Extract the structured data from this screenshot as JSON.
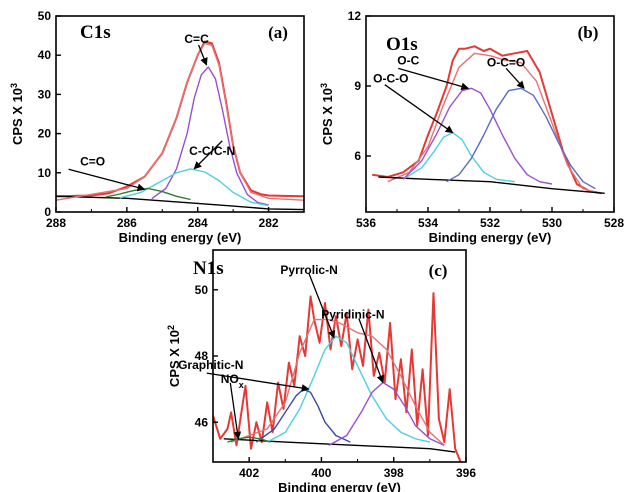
{
  "figure": {
    "background": "#ffffff"
  },
  "chart_data": [
    {
      "type": "line",
      "title": "C1s",
      "panel_label": "(a)",
      "xlabel": "Binding energy (eV)",
      "ylabel": "CPS X 10",
      "ylabel_exp": "3",
      "xlim": [
        288,
        281
      ],
      "ylim": [
        0,
        50
      ],
      "xticks": [
        288,
        286,
        284,
        282
      ],
      "yticks": [
        0,
        10,
        20,
        30,
        40,
        50
      ],
      "series": [
        {
          "color": "#e53935",
          "x": [
            288,
            287,
            286.5,
            286,
            285.5,
            285,
            284.6,
            284.3,
            284,
            283.8,
            283.6,
            283.4,
            283.2,
            283,
            282.8,
            282.5,
            282.2,
            282,
            281.6,
            281
          ],
          "y": [
            4,
            4.2,
            4.8,
            6.5,
            9,
            15,
            24,
            33,
            40,
            43.5,
            43,
            38,
            28,
            17,
            10,
            5.5,
            4.5,
            4.2,
            4.1,
            4
          ]
        },
        {
          "color": "#000000",
          "x": [
            288,
            286,
            284,
            283,
            282,
            281
          ],
          "y": [
            4,
            3.5,
            2.2,
            1.5,
            0.8,
            0.6
          ]
        },
        {
          "color": "#e57373",
          "x": [
            288,
            286,
            285.5,
            285,
            284.6,
            284.3,
            284,
            283.8,
            283.6,
            283.4,
            283.2,
            283,
            282.8,
            282.5,
            282,
            281
          ],
          "y": [
            3,
            6,
            9,
            15,
            24,
            33,
            40,
            43,
            42.5,
            37.5,
            27.5,
            17,
            10,
            5,
            3.5,
            3
          ]
        },
        {
          "color": "#9c4fd1",
          "x": [
            285.3,
            284.9,
            284.6,
            284.3,
            284.1,
            283.9,
            283.7,
            283.5,
            283.3,
            283.1,
            282.9,
            282.6,
            282.3,
            282
          ],
          "y": [
            3.4,
            6,
            11,
            20,
            29,
            35,
            37,
            34,
            26,
            17,
            10,
            4.5,
            2.4,
            1.8
          ]
        },
        {
          "color": "#4dd0e1",
          "x": [
            286.2,
            285.6,
            285,
            284.6,
            284.2,
            283.8,
            283.4,
            283,
            282.5,
            282
          ],
          "y": [
            3.6,
            5,
            8,
            10,
            11,
            10.2,
            8,
            5,
            2.5,
            1.6
          ]
        },
        {
          "color": "#2e7d32",
          "x": [
            286.6,
            286.2,
            285.8,
            285.4,
            285,
            284.6,
            284.2
          ],
          "y": [
            3.8,
            4.6,
            5.5,
            6,
            5.2,
            4,
            3.2
          ]
        }
      ],
      "annotations": [
        {
          "text": "C=C",
          "x": 283.75,
          "y": 37.5
        },
        {
          "text": "C-C/C-N",
          "x": 284.1,
          "y": 11
        },
        {
          "text": "C=O",
          "x": 285.5,
          "y": 5.8
        }
      ]
    },
    {
      "type": "line",
      "title": "O1s",
      "panel_label": "(b)",
      "xlabel": "Binding energy (eV)",
      "ylabel": "CPS X 10",
      "ylabel_exp": "3",
      "xlim": [
        536,
        528
      ],
      "ylim": [
        3.6,
        12
      ],
      "xticks": [
        536,
        534,
        532,
        530,
        528
      ],
      "yticks": [
        6,
        9,
        12
      ],
      "series": [
        {
          "color": "#e53935",
          "x": [
            535.8,
            535.3,
            534.8,
            534.3,
            534,
            533.7,
            533.4,
            533.2,
            533,
            532.8,
            532.5,
            532.2,
            532,
            531.6,
            531.2,
            530.8,
            530.4,
            530,
            529.6,
            529.2,
            528.8,
            528.4
          ],
          "y": [
            5.2,
            5.1,
            5.3,
            5.8,
            6.9,
            7.9,
            9,
            10.1,
            10.6,
            10.6,
            10.7,
            10.5,
            10.6,
            10.3,
            10.4,
            10.5,
            9.6,
            7.8,
            6,
            4.8,
            4.5,
            4.4
          ]
        },
        {
          "color": "#e57373",
          "x": [
            535.3,
            534.6,
            534,
            533.5,
            533,
            532.5,
            532,
            531.5,
            531,
            530.5,
            530,
            529.5,
            529,
            528.5
          ],
          "y": [
            4.9,
            5.3,
            6.4,
            8.2,
            9.8,
            10.4,
            10.3,
            10.1,
            10,
            9.2,
            7.4,
            5.6,
            4.6,
            4.4
          ]
        },
        {
          "color": "#000000",
          "x": [
            535.6,
            534,
            532,
            530,
            528.3
          ],
          "y": [
            5.1,
            5,
            4.9,
            4.6,
            4.4
          ]
        },
        {
          "color": "#4dd0e1",
          "x": [
            534.8,
            534.2,
            533.8,
            533.5,
            533.2,
            532.9,
            532.6,
            532.2,
            531.8,
            531.2
          ],
          "y": [
            5,
            5.5,
            6.2,
            6.8,
            7,
            6.7,
            6,
            5.3,
            5,
            4.9
          ]
        },
        {
          "color": "#9c4fd1",
          "x": [
            534.8,
            534.2,
            533.7,
            533.3,
            532.9,
            532.6,
            532.3,
            532,
            531.6,
            531.2,
            530.8,
            530.4,
            530
          ],
          "y": [
            5,
            5.8,
            7,
            8.1,
            8.8,
            8.9,
            8.7,
            8,
            6.9,
            5.9,
            5.2,
            4.9,
            4.8
          ]
        },
        {
          "color": "#5c6bc0",
          "x": [
            533.4,
            533,
            532.6,
            532.2,
            531.8,
            531.4,
            531,
            530.6,
            530.2,
            529.8,
            529.4,
            529,
            528.6
          ],
          "y": [
            4.9,
            5.2,
            5.9,
            6.9,
            8,
            8.8,
            8.9,
            8.6,
            7.7,
            6.6,
            5.6,
            4.9,
            4.6
          ]
        }
      ],
      "annotations": [
        {
          "text": "O-C",
          "x": 532.7,
          "y": 8.9
        },
        {
          "text": "O-C=O",
          "x": 530.9,
          "y": 8.9
        },
        {
          "text": "O-C-O",
          "x": 533.2,
          "y": 7
        }
      ]
    },
    {
      "type": "line",
      "title": "N1s",
      "panel_label": "(c)",
      "xlabel": "Binding energy (eV)",
      "ylabel": "CPS X 10",
      "ylabel_exp": "2",
      "xlim": [
        403,
        396
      ],
      "ylim": [
        44.8,
        51.2
      ],
      "xticks": [
        402,
        400,
        398,
        396
      ],
      "yticks": [
        46,
        48,
        50
      ],
      "series": [
        {
          "color": "#e53935",
          "x": [
            403,
            402.8,
            402.6,
            402.5,
            402.35,
            402.2,
            402.1,
            401.95,
            401.8,
            401.65,
            401.5,
            401.35,
            401.2,
            401.05,
            400.9,
            400.75,
            400.6,
            400.45,
            400.3,
            400.2,
            400.05,
            399.9,
            399.75,
            399.6,
            399.45,
            399.3,
            399.15,
            399,
            398.85,
            398.7,
            398.55,
            398.4,
            398.25,
            398.1,
            397.95,
            397.8,
            397.65,
            397.5,
            397.35,
            397.2,
            397.05,
            396.9,
            396.75,
            396.6,
            396.45,
            396.3,
            396.15
          ],
          "y": [
            46.2,
            45.5,
            45.8,
            46.3,
            45.3,
            46.4,
            47.1,
            45.2,
            46,
            45.4,
            46.6,
            45.7,
            47.2,
            46.4,
            47.8,
            47.1,
            48.6,
            48,
            49.8,
            49.1,
            48.4,
            49.6,
            48.2,
            49.2,
            48.3,
            49.3,
            47.6,
            48.5,
            47.7,
            49.4,
            47.4,
            48.1,
            47.2,
            49,
            46.7,
            47.9,
            46.3,
            48.2,
            45.9,
            47.6,
            45.6,
            49.9,
            46.1,
            45.4,
            47,
            45.2,
            44.8
          ]
        },
        {
          "color": "#e57373",
          "x": [
            402.5,
            401.5,
            401,
            400.6,
            400.2,
            399.8,
            399.5,
            399,
            398.6,
            398.2,
            397.8,
            397.4,
            397,
            396.6
          ],
          "y": [
            45.4,
            45.8,
            46.6,
            48.1,
            49.1,
            49.1,
            49,
            48.7,
            48.6,
            48.2,
            47.4,
            46.5,
            45.7,
            45.3
          ]
        },
        {
          "color": "#000000",
          "x": [
            402.7,
            401,
            399,
            397,
            396.3
          ],
          "y": [
            45.5,
            45.4,
            45.3,
            45.2,
            45.1
          ]
        },
        {
          "color": "#4dd0e1",
          "x": [
            401.5,
            401,
            400.6,
            400.2,
            399.9,
            399.6,
            399.3,
            399,
            398.6,
            398.2,
            397.8,
            397.4,
            397
          ],
          "y": [
            45.4,
            45.7,
            46.4,
            47.4,
            48.2,
            48.6,
            48.4,
            47.7,
            46.8,
            46.1,
            45.7,
            45.5,
            45.4
          ]
        },
        {
          "color": "#3949ab",
          "x": [
            401.8,
            401.3,
            401,
            400.7,
            400.5,
            400.3,
            400.1,
            399.9,
            399.6,
            399.2
          ],
          "y": [
            45.4,
            45.8,
            46.3,
            46.8,
            47,
            46.9,
            46.5,
            46,
            45.6,
            45.4
          ]
        },
        {
          "color": "#9c4fd1",
          "x": [
            399.8,
            399.3,
            398.9,
            398.6,
            398.3,
            398,
            397.7,
            397.4,
            397,
            396.6
          ],
          "y": [
            45.3,
            45.6,
            46.3,
            46.9,
            47.2,
            47,
            46.5,
            45.9,
            45.5,
            45.3
          ]
        },
        {
          "color": "#2e7d32",
          "x": [
            402.6,
            402.3,
            402,
            401.7,
            401.4
          ],
          "y": [
            45.4,
            45.5,
            45.55,
            45.5,
            45.4
          ]
        }
      ],
      "annotations": [
        {
          "text": "Pyrrolic-N",
          "x": 399.65,
          "y": 48.55
        },
        {
          "text": "Pyridinic-N",
          "x": 398.3,
          "y": 47.2
        },
        {
          "text": "Graphitic-N",
          "x": 400.35,
          "y": 47
        },
        {
          "text": "NO",
          "sub": "x",
          "x": 402.3,
          "y": 45.5
        }
      ]
    }
  ]
}
